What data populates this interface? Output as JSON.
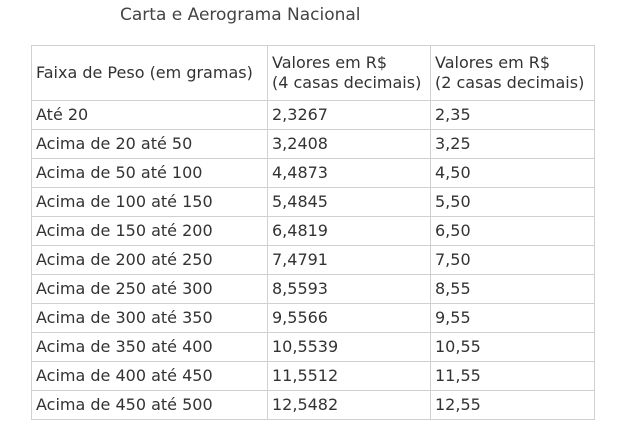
{
  "title": "Carta e Aerograma Nacional",
  "table": {
    "headers": [
      {
        "line1": "Faixa de Peso (em gramas)",
        "line2": ""
      },
      {
        "line1": "Valores em R$",
        "line2": "(4 casas decimais)"
      },
      {
        "line1": "Valores em R$",
        "line2": "(2 casas decimais)"
      }
    ],
    "rows": [
      [
        "Até 20",
        "2,3267",
        "2,35"
      ],
      [
        "Acima de 20 até 50",
        "3,2408",
        "3,25"
      ],
      [
        "Acima de 50 até 100",
        "4,4873",
        "4,50"
      ],
      [
        "Acima de 100 até 150",
        "5,4845",
        "5,50"
      ],
      [
        "Acima de 150 até 200",
        "6,4819",
        "6,50"
      ],
      [
        "Acima de 200 até 250",
        "7,4791",
        "7,50"
      ],
      [
        "Acima de 250 até 300",
        "8,5593",
        "8,55"
      ],
      [
        "Acima de 300 até 350",
        "9,5566",
        "9,55"
      ],
      [
        "Acima de 350 até 400",
        "10,5539",
        "10,55"
      ],
      [
        "Acima de 400 até 450",
        "11,5512",
        "11,55"
      ],
      [
        "Acima de 450 até 500",
        "12,5482",
        "12,55"
      ]
    ]
  }
}
